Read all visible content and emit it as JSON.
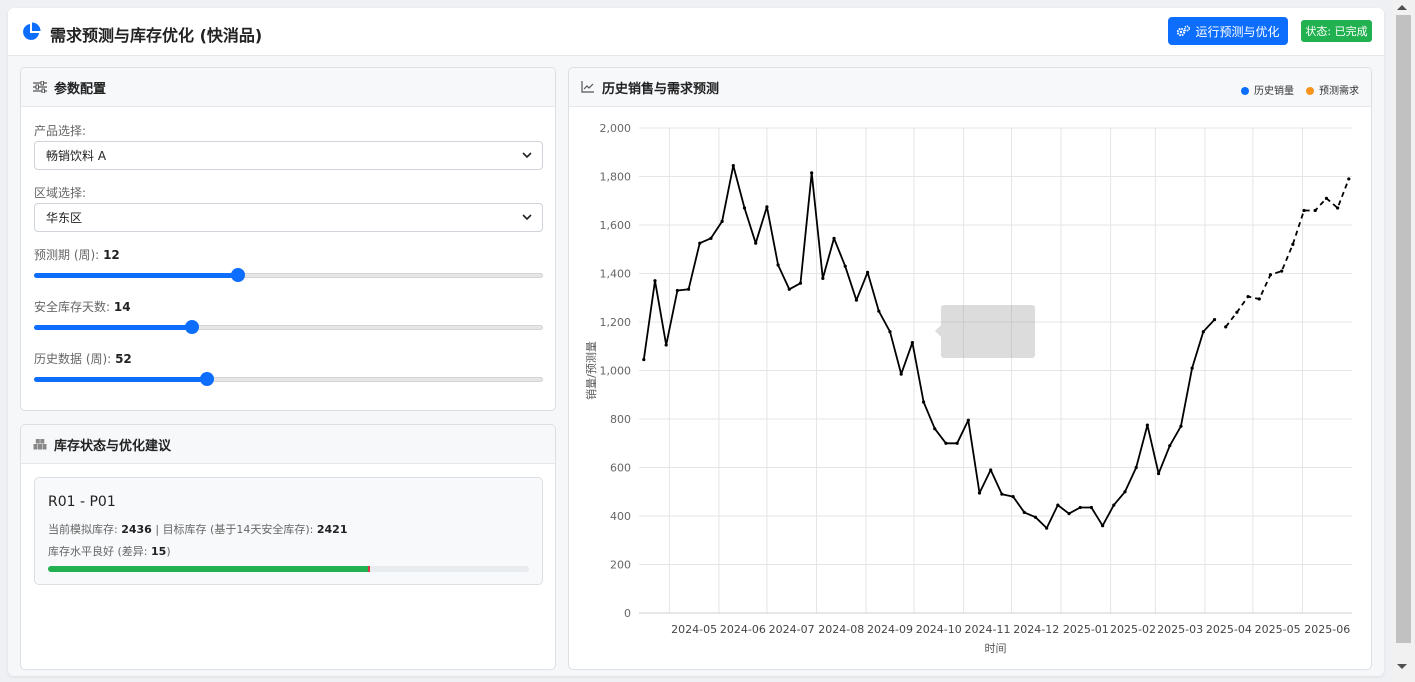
{
  "app": {
    "title": "需求预测与库存优化 (快消品)",
    "run_button": "运行预测与优化",
    "status": "状态: 已完成"
  },
  "config": {
    "title": "参数配置",
    "product_label": "产品选择:",
    "product_value": "畅销饮料 A",
    "region_label": "区域选择:",
    "region_value": "华东区",
    "forecast_label": "预测期 (周):",
    "forecast_value": "12",
    "forecast_fraction": 0.4,
    "safety_label": "安全库存天数:",
    "safety_value": "14",
    "safety_fraction": 0.31,
    "history_label": "历史数据 (周):",
    "history_value": "52",
    "history_fraction": 0.34
  },
  "inventory": {
    "title": "库存状态与优化建议",
    "code": "R01 - P01",
    "current_label": "当前模拟库存:",
    "current_value": "2436",
    "sep": "|",
    "target_label": "目标库存 (基于14天安全库存):",
    "target_value": "2421",
    "status_text": "库存水平良好 (差异:",
    "diff_value": "15",
    "status_close": ")",
    "level_fraction": 0.665
  },
  "chart_panel": {
    "title": "历史销售与需求预测"
  },
  "colors": {
    "primary": "#0d6efd",
    "success": "#22b150",
    "history": "#0d6efd",
    "forecast": "#f7941d",
    "line": "#000000"
  },
  "chart_data": {
    "type": "line",
    "xlabel": "时间",
    "ylabel": "销量/预测量",
    "ylim": [
      0,
      2000
    ],
    "yticks": [
      "0",
      "200",
      "400",
      "600",
      "800",
      "1,000",
      "1,200",
      "1,400",
      "1,600",
      "1,800",
      "2,000"
    ],
    "xticks": [
      "2024-05",
      "2024-06",
      "2024-07",
      "2024-08",
      "2024-09",
      "2024-10",
      "2024-11",
      "2024-12",
      "2025-01",
      "2025-02",
      "2025-03",
      "2025-04",
      "2025-05",
      "2025-06"
    ],
    "grid": true,
    "legend_position": "top-right",
    "series": [
      {
        "name": "历史销量",
        "style": "solid",
        "x": [
          "2024-04-15",
          "2024-04-22",
          "2024-04-29",
          "2024-05-06",
          "2024-05-13",
          "2024-05-20",
          "2024-05-27",
          "2024-06-03",
          "2024-06-10",
          "2024-06-17",
          "2024-06-24",
          "2024-07-01",
          "2024-07-08",
          "2024-07-15",
          "2024-07-22",
          "2024-07-29",
          "2024-08-05",
          "2024-08-12",
          "2024-08-19",
          "2024-08-26",
          "2024-09-02",
          "2024-09-09",
          "2024-09-16",
          "2024-09-23",
          "2024-09-30",
          "2024-10-07",
          "2024-10-14",
          "2024-10-21",
          "2024-10-28",
          "2024-11-04",
          "2024-11-11",
          "2024-11-18",
          "2024-11-25",
          "2024-12-02",
          "2024-12-09",
          "2024-12-16",
          "2024-12-23",
          "2024-12-30",
          "2025-01-06",
          "2025-01-13",
          "2025-01-20",
          "2025-01-27",
          "2025-02-03",
          "2025-02-10",
          "2025-02-17",
          "2025-02-24",
          "2025-03-03",
          "2025-03-10",
          "2025-03-17",
          "2025-03-24",
          "2025-03-31",
          "2025-04-07"
        ],
        "values": [
          1045,
          1370,
          1105,
          1330,
          1335,
          1525,
          1545,
          1615,
          1845,
          1670,
          1525,
          1675,
          1435,
          1335,
          1360,
          1815,
          1380,
          1545,
          1430,
          1290,
          1405,
          1245,
          1160,
          985,
          1115,
          870,
          760,
          700,
          700,
          795,
          495,
          590,
          490,
          480,
          415,
          395,
          350,
          445,
          410,
          435,
          435,
          360,
          445,
          500,
          600,
          775,
          575,
          690,
          770,
          1010,
          1160,
          1210
        ]
      },
      {
        "name": "预测需求",
        "style": "dashed",
        "x": [
          "2025-04-14",
          "2025-04-21",
          "2025-04-28",
          "2025-05-05",
          "2025-05-12",
          "2025-05-19",
          "2025-05-26",
          "2025-06-02",
          "2025-06-09",
          "2025-06-16",
          "2025-06-23",
          "2025-06-30"
        ],
        "values": [
          1180,
          1240,
          1305,
          1295,
          1395,
          1410,
          1520,
          1660,
          1660,
          1710,
          1670,
          1790
        ]
      }
    ]
  }
}
